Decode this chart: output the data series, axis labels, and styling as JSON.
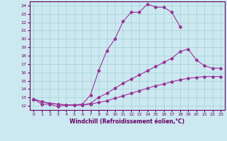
{
  "xlabel": "Windchill (Refroidissement éolien,°C)",
  "bg_color": "#cce8f0",
  "line_color": "#993399",
  "xlim": [
    -0.5,
    23.5
  ],
  "ylim": [
    11.5,
    24.5
  ],
  "yticks": [
    12,
    13,
    14,
    15,
    16,
    17,
    18,
    19,
    20,
    21,
    22,
    23,
    24
  ],
  "xticks": [
    0,
    1,
    2,
    3,
    4,
    5,
    6,
    7,
    8,
    9,
    10,
    11,
    12,
    13,
    14,
    15,
    16,
    17,
    18,
    19,
    20,
    21,
    22,
    23
  ],
  "line1_x": [
    0,
    1,
    2,
    3,
    4,
    5,
    6,
    7,
    8,
    9,
    10,
    11,
    12,
    13,
    14,
    15,
    16,
    17,
    18
  ],
  "line1_y": [
    12.8,
    12.2,
    12.2,
    11.9,
    12.1,
    12.1,
    12.2,
    13.3,
    16.2,
    18.6,
    20.0,
    22.1,
    23.2,
    23.2,
    24.2,
    23.8,
    23.8,
    23.2,
    21.5
  ],
  "line2_x": [
    0,
    1,
    2,
    3,
    4,
    5,
    6,
    7,
    8,
    9,
    10,
    11,
    12,
    13,
    14,
    15,
    16,
    17,
    18,
    19,
    20,
    21,
    22,
    23
  ],
  "line2_y": [
    12.8,
    12.5,
    12.3,
    12.2,
    12.1,
    12.1,
    12.1,
    12.3,
    13.0,
    13.5,
    14.1,
    14.7,
    15.2,
    15.7,
    16.2,
    16.7,
    17.2,
    17.7,
    18.5,
    18.8,
    17.5,
    16.8,
    16.5,
    16.5
  ],
  "line3_x": [
    0,
    1,
    2,
    3,
    4,
    5,
    6,
    7,
    8,
    9,
    10,
    11,
    12,
    13,
    14,
    15,
    16,
    17,
    18,
    19,
    20,
    21,
    22,
    23
  ],
  "line3_y": [
    12.8,
    12.5,
    12.3,
    12.2,
    12.1,
    12.1,
    12.1,
    12.2,
    12.4,
    12.6,
    12.9,
    13.2,
    13.5,
    13.8,
    14.1,
    14.4,
    14.6,
    14.9,
    15.1,
    15.3,
    15.4,
    15.5,
    15.5,
    15.5
  ]
}
